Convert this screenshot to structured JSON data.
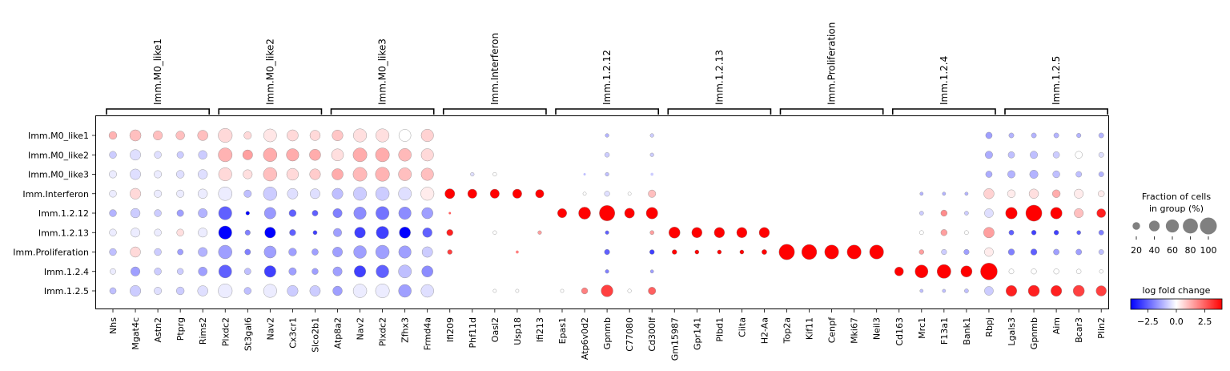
{
  "chart_data": {
    "type": "dotplot",
    "groups": [
      {
        "label": "Imm.M0_like1",
        "genes": [
          "Nhs",
          "Mgat4c",
          "Astn2",
          "Ptprg",
          "Rims2"
        ]
      },
      {
        "label": "Imm.M0_like2",
        "genes": [
          "Plxdc2",
          "St3gal6",
          "Nav2",
          "Cx3cr1",
          "Slco2b1"
        ]
      },
      {
        "label": "Imm.M0_like3",
        "genes": [
          "Atp8a2",
          "Nav2",
          "Plxdc2",
          "Zfhx3",
          "Frmd4a"
        ]
      },
      {
        "label": "Imm.Interferon",
        "genes": [
          "Ifi209",
          "Phf11d",
          "Oasl2",
          "Usp18",
          "Ifi213"
        ]
      },
      {
        "label": "Imm.1.2.12",
        "genes": [
          "Epas1",
          "Atp6v0d2",
          "Gpnmb",
          "C77080",
          "Cd300lf"
        ]
      },
      {
        "label": "Imm.1.2.13",
        "genes": [
          "Gm15987",
          "Gpr141",
          "Plbd1",
          "Ciita",
          "H2-Aa"
        ]
      },
      {
        "label": "Imm.Proliferation",
        "genes": [
          "Top2a",
          "Kif11",
          "Cenpf",
          "Mki67",
          "Neil3"
        ]
      },
      {
        "label": "Imm.1.2.4",
        "genes": [
          "Cd163",
          "Mrc1",
          "F13a1",
          "Bank1",
          "Rbpj"
        ]
      },
      {
        "label": "Imm.1.2.5",
        "genes": [
          "Lgals3",
          "Gpnmb",
          "Aim",
          "Bcar3",
          "Plin2"
        ]
      }
    ],
    "rows": [
      "Imm.M0_like1",
      "Imm.M0_like2",
      "Imm.M0_like3",
      "Imm.Interferon",
      "Imm.1.2.12",
      "Imm.1.2.13",
      "Imm.Proliferation",
      "Imm.1.2.4",
      "Imm.1.2.5"
    ],
    "fraction": [
      [
        22,
        45,
        30,
        27,
        38,
        70,
        20,
        60,
        45,
        38,
        42,
        62,
        62,
        52,
        55,
        2,
        2,
        2,
        2,
        2,
        2,
        2,
        5,
        2,
        5,
        1,
        1,
        1,
        1,
        1,
        1,
        1,
        1,
        1,
        1,
        1,
        2,
        2,
        2,
        15,
        9,
        9,
        9,
        7,
        9
      ],
      [
        18,
        40,
        18,
        16,
        27,
        68,
        35,
        65,
        55,
        45,
        52,
        68,
        68,
        58,
        55,
        2,
        2,
        2,
        2,
        2,
        2,
        2,
        8,
        2,
        5,
        1,
        1,
        1,
        1,
        1,
        1,
        1,
        1,
        1,
        1,
        1,
        2,
        2,
        2,
        20,
        15,
        20,
        15,
        18,
        9
      ],
      [
        20,
        40,
        20,
        22,
        32,
        62,
        30,
        65,
        50,
        42,
        45,
        68,
        70,
        60,
        55,
        2,
        5,
        5,
        2,
        2,
        2,
        2,
        5,
        2,
        3,
        1,
        1,
        1,
        1,
        1,
        1,
        1,
        1,
        1,
        1,
        1,
        2,
        2,
        2,
        15,
        20,
        25,
        18,
        12,
        9
      ],
      [
        18,
        42,
        20,
        20,
        32,
        66,
        20,
        65,
        40,
        35,
        42,
        62,
        65,
        60,
        62,
        35,
        30,
        30,
        30,
        25,
        2,
        4,
        10,
        4,
        20,
        2,
        1,
        1,
        1,
        1,
        1,
        1,
        1,
        1,
        1,
        2,
        4,
        4,
        4,
        38,
        22,
        32,
        22,
        30,
        14
      ],
      [
        18,
        32,
        18,
        16,
        30,
        62,
        5,
        48,
        18,
        12,
        30,
        55,
        62,
        55,
        45,
        2,
        1,
        2,
        2,
        2,
        30,
        52,
        85,
        35,
        48,
        1,
        1,
        1,
        1,
        1,
        1,
        1,
        1,
        1,
        1,
        2,
        6,
        14,
        6,
        28,
        48,
        92,
        48,
        30,
        28
      ],
      [
        18,
        30,
        18,
        18,
        30,
        62,
        10,
        42,
        14,
        6,
        25,
        42,
        55,
        45,
        32,
        14,
        2,
        5,
        3,
        5,
        1,
        1,
        5,
        1,
        6,
        45,
        38,
        38,
        38,
        38,
        1,
        1,
        1,
        1,
        1,
        1,
        6,
        14,
        6,
        40,
        9,
        8,
        8,
        6,
        9
      ],
      [
        18,
        38,
        18,
        12,
        30,
        65,
        12,
        52,
        22,
        15,
        35,
        58,
        65,
        55,
        40,
        8,
        2,
        2,
        3,
        2,
        2,
        2,
        10,
        3,
        8,
        8,
        6,
        6,
        6,
        9,
        85,
        80,
        70,
        70,
        70,
        2,
        8,
        10,
        10,
        28,
        14,
        14,
        12,
        12,
        9
      ],
      [
        12,
        30,
        18,
        14,
        28,
        60,
        15,
        48,
        20,
        14,
        30,
        48,
        58,
        60,
        45,
        2,
        1,
        2,
        2,
        2,
        2,
        2,
        5,
        3,
        4,
        1,
        1,
        1,
        1,
        1,
        1,
        1,
        1,
        1,
        1,
        28,
        60,
        68,
        45,
        100,
        9,
        10,
        10,
        8,
        5
      ],
      [
        15,
        42,
        20,
        22,
        38,
        70,
        18,
        62,
        42,
        40,
        32,
        65,
        68,
        58,
        58,
        2,
        2,
        4,
        4,
        2,
        4,
        14,
        50,
        5,
        20,
        1,
        1,
        1,
        1,
        1,
        1,
        1,
        1,
        1,
        1,
        2,
        4,
        4,
        6,
        28,
        42,
        45,
        42,
        45,
        38
      ]
    ],
    "logfc": [
      [
        1.2,
        1.0,
        1.0,
        1.0,
        1.0,
        0.6,
        0.6,
        0.4,
        0.6,
        0.6,
        0.9,
        0.5,
        0.5,
        0,
        0.7,
        0,
        0,
        0,
        0,
        0,
        0,
        0,
        -1.2,
        0,
        -0.8,
        0,
        0,
        0,
        0,
        0,
        0,
        0,
        0,
        0,
        0,
        0,
        0,
        0,
        0,
        -1.5,
        -1.2,
        -1.2,
        -1.2,
        -1.2,
        -1.2
      ],
      [
        -0.8,
        -0.5,
        -0.5,
        -0.8,
        -0.8,
        1.2,
        1.5,
        1.3,
        1.3,
        1.3,
        0.5,
        1.3,
        1.3,
        1.1,
        0.6,
        0,
        0,
        0,
        0,
        0,
        0,
        0,
        -0.8,
        0,
        -0.8,
        0,
        0,
        0,
        0,
        0,
        0,
        0,
        0,
        0,
        0,
        0,
        0,
        0,
        0,
        -1.3,
        -1.0,
        -1.0,
        -0.8,
        0,
        -0.5
      ],
      [
        -0.3,
        -0.5,
        -0.3,
        -0.5,
        -0.5,
        0.6,
        0.5,
        1.0,
        0.6,
        0.8,
        1.3,
        1.1,
        1.2,
        1.0,
        1.0,
        0,
        -0.5,
        0,
        0,
        0,
        0,
        -1.0,
        -1.0,
        0,
        -0.8,
        0,
        0,
        0,
        0,
        0,
        0,
        0,
        0,
        0,
        0,
        0,
        0,
        0,
        0,
        -1.3,
        -1.2,
        -1.2,
        -1.0,
        -1.0,
        -1.2
      ],
      [
        -0.3,
        0.6,
        -0.3,
        -0.3,
        -0.3,
        -0.3,
        -1.0,
        -0.8,
        -0.5,
        -0.5,
        -1.0,
        -0.8,
        -0.8,
        -0.5,
        0.3,
        5,
        5,
        5,
        5,
        5,
        0,
        0,
        -0.5,
        0,
        1.0,
        0,
        0,
        0,
        0,
        0,
        0,
        0,
        0,
        0,
        0,
        0,
        -1.2,
        -1.2,
        -1.2,
        0.7,
        0.3,
        0.5,
        1.3,
        0.3,
        0.3
      ],
      [
        -1.2,
        -0.8,
        -0.8,
        -1.5,
        -1.2,
        -2.5,
        -4,
        -1.6,
        -2.5,
        -2.5,
        -2.0,
        -1.8,
        -2.2,
        -1.8,
        -1.5,
        2.5,
        0,
        0,
        0,
        0,
        5,
        5,
        5,
        5,
        4.2,
        0,
        0,
        0,
        0,
        0,
        0,
        0,
        0,
        0,
        0,
        0,
        -0.8,
        1.8,
        -0.8,
        -0.5,
        4,
        5,
        4,
        1.0,
        3.5
      ],
      [
        -0.3,
        -0.3,
        -0.3,
        0.5,
        -0.3,
        -4,
        -2,
        -4,
        -2.5,
        -3,
        -1.5,
        -3,
        -3,
        -4,
        -2.5,
        3.5,
        0,
        0,
        0,
        1.5,
        0,
        0,
        -2.5,
        0,
        1.5,
        5,
        5,
        5,
        5,
        5,
        0,
        0,
        0,
        0,
        0,
        0,
        0,
        1.5,
        0,
        1.5,
        -2.5,
        -3,
        -3,
        -2.5,
        -2
      ],
      [
        -1.0,
        0.6,
        -0.8,
        -1.5,
        -1.2,
        -1.5,
        -2,
        -1.5,
        -1.5,
        -1.5,
        -1.5,
        -1.5,
        -1.5,
        -1.5,
        -0.8,
        3.0,
        0,
        0,
        2.0,
        0,
        0,
        0,
        -2.5,
        0,
        -3,
        4.5,
        4.5,
        4.5,
        4.5,
        4.5,
        5,
        5,
        5,
        5,
        5,
        0,
        1.5,
        -0.8,
        -1.5,
        0.3,
        -2,
        -2.5,
        -1.5,
        -1.5,
        -1
      ],
      [
        -0.3,
        -1.5,
        -0.8,
        -0.8,
        -1.5,
        -2.5,
        -1.0,
        -3,
        -1.5,
        -1.5,
        -1.5,
        -3,
        -2.5,
        -1,
        -1.8,
        0,
        0,
        0,
        0,
        0,
        0,
        0,
        -2,
        0,
        -1.5,
        0,
        0,
        0,
        0,
        0,
        0,
        0,
        0,
        0,
        0,
        5,
        5,
        5,
        5,
        5,
        0,
        0,
        0,
        0,
        0
      ],
      [
        -1.0,
        -0.8,
        -0.5,
        -0.8,
        -0.5,
        -0.3,
        -1,
        -0.3,
        -0.8,
        -0.8,
        -1.5,
        -0.3,
        -0.3,
        -1.5,
        -0.5,
        0,
        0,
        0,
        0,
        0,
        0,
        2,
        3,
        0,
        2.5,
        0,
        0,
        0,
        0,
        0,
        0,
        0,
        0,
        0,
        0,
        0,
        -1,
        -1,
        -1,
        -0.8,
        3.5,
        3.5,
        3.5,
        3.0,
        3.0
      ]
    ],
    "size_legend": {
      "title_line1": "Fraction of cells",
      "title_line2": "in group (%)",
      "values": [
        20,
        40,
        60,
        80,
        100
      ],
      "labels": [
        "20",
        "40",
        "60",
        "80",
        "100"
      ]
    },
    "color_legend": {
      "title": "log fold change",
      "range": [
        -4,
        4
      ],
      "ticks": [
        -2.5,
        0.0,
        2.5
      ],
      "tick_labels": [
        "−2.5",
        "0.0",
        "2.5"
      ]
    },
    "colors": {
      "low": "#0000ff",
      "mid": "#ffffff",
      "high": "#ff0000",
      "legend_dot": "#808080"
    }
  }
}
